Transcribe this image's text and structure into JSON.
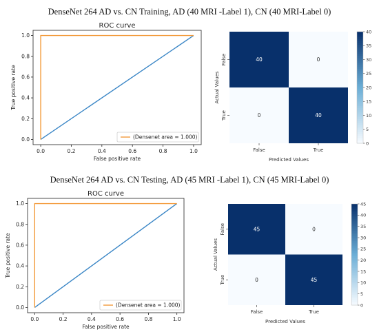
{
  "captions": {
    "training": "DenseNet 264 AD vs. CN Training, AD (40 MRI -Label 1), CN (40 MRI-Label 0)",
    "testing": "DenseNet 264 AD vs. CN Testing, AD (45 MRI -Label 1), CN (45 MRI-Label 0)"
  },
  "colors": {
    "roc_curve": "#f39a3a",
    "chance_line": "#3a86c6",
    "heat_high": "#08306b",
    "heat_low": "#f7fbff"
  },
  "chart_data": [
    {
      "type": "line",
      "title": "ROC curve",
      "xlabel": "False positive rate",
      "ylabel": "True positive rate",
      "xlim": [
        -0.05,
        1.05
      ],
      "ylim": [
        -0.05,
        1.05
      ],
      "xticks": [
        "0.0",
        "0.2",
        "0.4",
        "0.6",
        "0.8",
        "1.0"
      ],
      "yticks": [
        "0.0",
        "0.2",
        "0.4",
        "0.6",
        "0.8",
        "1.0"
      ],
      "grid": false,
      "legend": "lower-right",
      "series": [
        {
          "name": "(Densenet area = 1.000)",
          "x": [
            0,
            0,
            1
          ],
          "y": [
            0,
            1,
            1
          ]
        },
        {
          "x": [
            0,
            1
          ],
          "y": [
            0,
            1
          ]
        }
      ]
    },
    {
      "type": "heatmap",
      "xlabel": "Predicted Values",
      "ylabel": "Actual Values",
      "x_categories": [
        "False",
        "True"
      ],
      "y_categories": [
        "False",
        "True"
      ],
      "values": [
        [
          40,
          0
        ],
        [
          0,
          40
        ]
      ],
      "colorbar_ticks": [
        "0",
        "5",
        "10",
        "15",
        "20",
        "25",
        "30",
        "35",
        "40"
      ],
      "vmax": 40
    },
    {
      "type": "line",
      "title": "ROC curve",
      "xlabel": "False positive rate",
      "ylabel": "True positive rate",
      "xlim": [
        -0.05,
        1.05
      ],
      "ylim": [
        -0.05,
        1.05
      ],
      "xticks": [
        "0.0",
        "0.2",
        "0.4",
        "0.6",
        "0.8",
        "1.0"
      ],
      "yticks": [
        "0.0",
        "0.2",
        "0.4",
        "0.6",
        "0.8",
        "1.0"
      ],
      "grid": false,
      "legend": "lower-right",
      "series": [
        {
          "name": "(Densenet area = 1.000)",
          "x": [
            0,
            0,
            1
          ],
          "y": [
            0,
            1,
            1
          ]
        },
        {
          "x": [
            0,
            1
          ],
          "y": [
            0,
            1
          ]
        }
      ]
    },
    {
      "type": "heatmap",
      "xlabel": "Predicted Values",
      "ylabel": "Actual Values",
      "x_categories": [
        "False",
        "True"
      ],
      "y_categories": [
        "False",
        "True"
      ],
      "values": [
        [
          45,
          0
        ],
        [
          0,
          45
        ]
      ],
      "colorbar_ticks": [
        "0",
        "5",
        "10",
        "15",
        "20",
        "25",
        "30",
        "35",
        "40",
        "45"
      ],
      "vmax": 45
    }
  ]
}
